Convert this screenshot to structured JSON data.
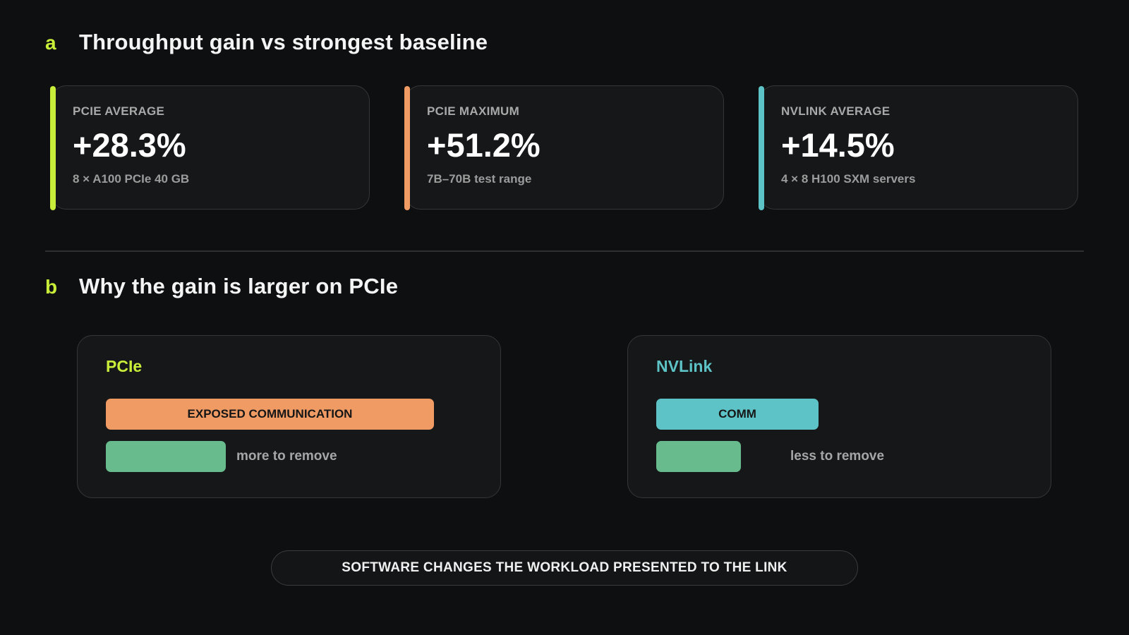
{
  "colors": {
    "background": "#0e0f10",
    "accent_lime": "#c8ee3a",
    "accent_orange": "#f09a64",
    "accent_teal": "#5ec3c6",
    "green": "#67bb8d"
  },
  "section_a": {
    "letter": "a",
    "title": "Throughput gain vs strongest baseline",
    "cards": [
      {
        "label": "PCIE AVERAGE",
        "value": "+28.3%",
        "sub": "8 × A100 PCIe 40 GB",
        "accent": "#c8ee3a"
      },
      {
        "label": "PCIE MAXIMUM",
        "value": "+51.2%",
        "sub": "7B–70B test range",
        "accent": "#f09a64"
      },
      {
        "label": "NVLINK AVERAGE",
        "value": "+14.5%",
        "sub": "4 × 8 H100 SXM servers",
        "accent": "#5ec3c6"
      }
    ]
  },
  "section_b": {
    "letter": "b",
    "title": "Why the gain is larger on PCIe",
    "panels": [
      {
        "title": "PCIe",
        "title_color": "#c8ee3a",
        "comm_label": "EXPOSED COMMUNICATION",
        "comm_color": "#f09a64",
        "green_fraction_of_comm": 0.365,
        "note": "more to remove"
      },
      {
        "title": "NVLink",
        "title_color": "#5ec3c6",
        "comm_label": "COMM",
        "comm_color": "#5ec3c6",
        "green_fraction_of_comm": 0.52,
        "note": "less to remove"
      }
    ]
  },
  "footer": {
    "label": "SOFTWARE CHANGES THE WORKLOAD PRESENTED TO THE LINK"
  }
}
